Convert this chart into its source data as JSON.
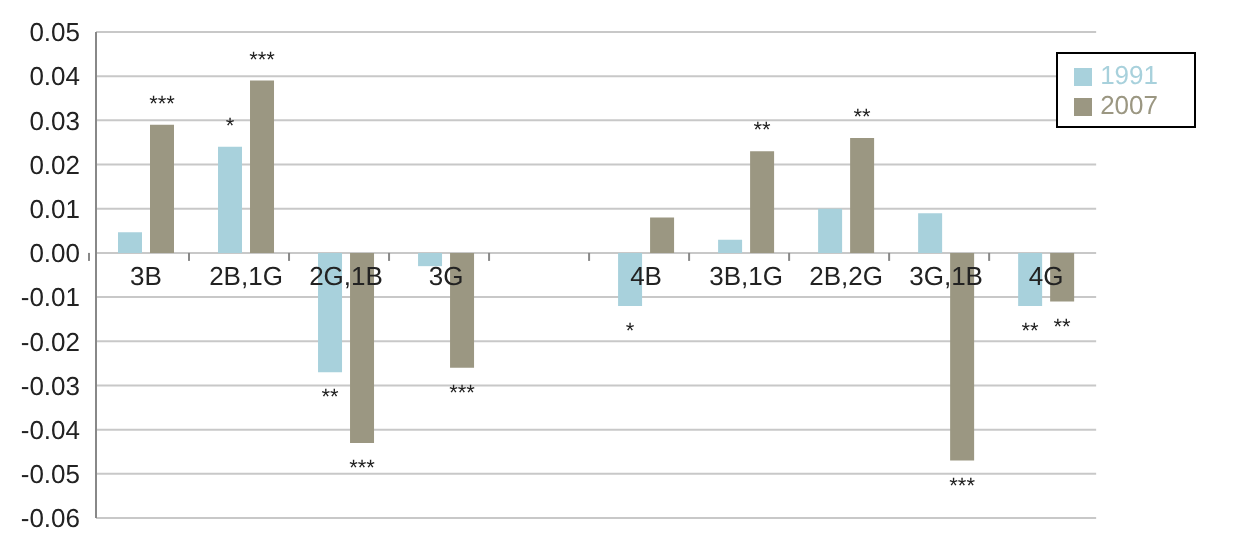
{
  "chart_data": {
    "type": "bar",
    "categories": [
      "3B",
      "2B,1G",
      "2G,1B",
      "3G",
      null,
      "4B",
      "3B,1G",
      "2B,2G",
      "3G,1B",
      "4G"
    ],
    "series": [
      {
        "name": "1991",
        "color": "#a8d1dc",
        "values": [
          0.0047,
          0.024,
          -0.027,
          -0.003,
          null,
          -0.012,
          0.003,
          0.01,
          0.009,
          -0.012
        ],
        "value_labels": [
          null,
          "*",
          "**",
          null,
          null,
          "*",
          null,
          null,
          null,
          "**"
        ]
      },
      {
        "name": "2007",
        "color": "#9b9782",
        "values": [
          0.029,
          0.039,
          -0.043,
          -0.026,
          null,
          0.008,
          0.023,
          0.026,
          -0.047,
          -0.011
        ],
        "value_labels": [
          "***",
          "***",
          "***",
          "***",
          null,
          null,
          "**",
          "**",
          "***",
          "**"
        ]
      }
    ],
    "ylim": [
      -0.06,
      0.05
    ],
    "yticks": [
      -0.06,
      -0.05,
      -0.04,
      -0.03,
      -0.02,
      -0.01,
      {
        "value": 0,
        "label": "0.00"
      },
      0.01,
      0.02,
      0.03,
      0.04,
      0.05
    ],
    "grid": "y",
    "legend": "top right"
  }
}
